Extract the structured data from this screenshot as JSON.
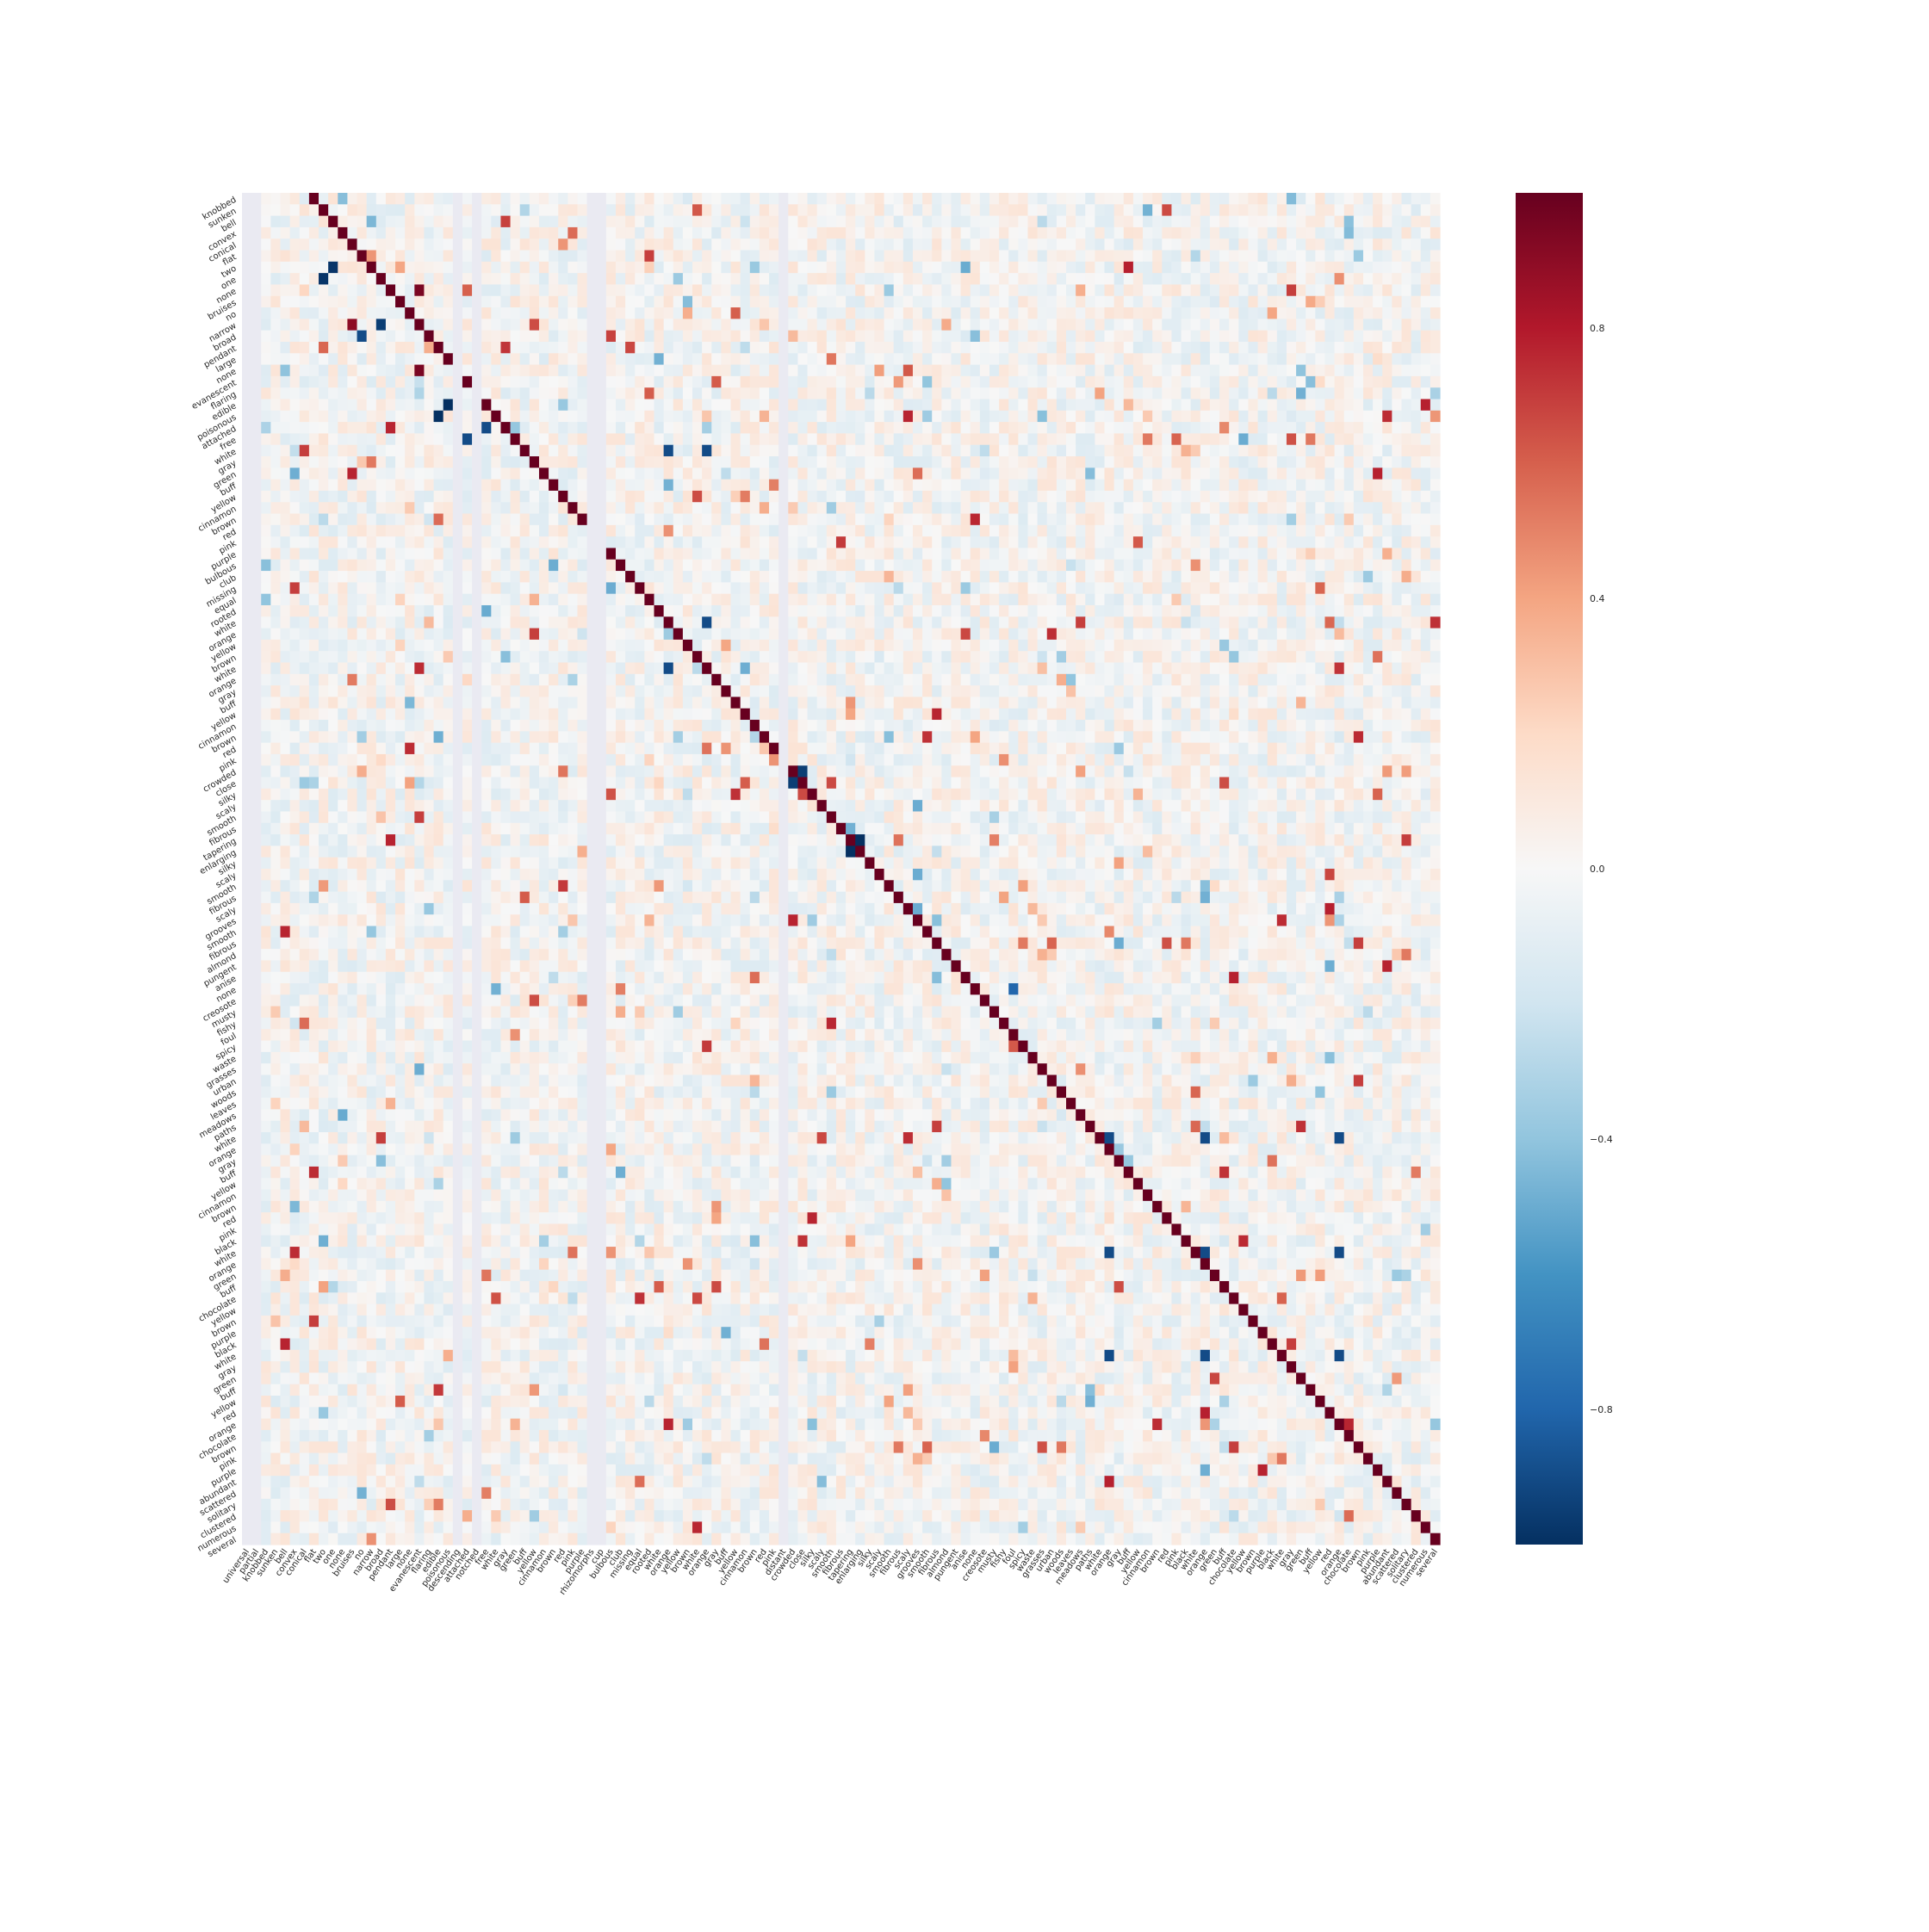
{
  "chart_data": {
    "type": "heatmap",
    "title": "",
    "xlabel": "",
    "ylabel": "",
    "row_labels": [
      "knobbed",
      "sunken",
      "bell",
      "convex",
      "conical",
      "flat",
      "two",
      "one",
      "none",
      "bruises",
      "no",
      "narrow",
      "broad",
      "pendant",
      "large",
      "none",
      "evanescent",
      "flaring",
      "edible",
      "poisonous",
      "attached",
      "free",
      "white",
      "gray",
      "green",
      "buff",
      "yellow",
      "cinnamon",
      "brown",
      "red",
      "pink",
      "purple",
      "bulbous",
      "club",
      "missing",
      "equal",
      "rooted",
      "white",
      "orange",
      "yellow",
      "brown",
      "white",
      "orange",
      "gray",
      "buff",
      "yellow",
      "cinnamon",
      "brown",
      "red",
      "pink",
      "crowded",
      "close",
      "silky",
      "scaly",
      "smooth",
      "fibrous",
      "tapering",
      "enlarging",
      "silky",
      "scaly",
      "smooth",
      "fibrous",
      "scaly",
      "grooves",
      "smooth",
      "fibrous",
      "almond",
      "pungent",
      "anise",
      "none",
      "creosote",
      "musty",
      "fishy",
      "foul",
      "spicy",
      "waste",
      "grasses",
      "urban",
      "woods",
      "leaves",
      "meadows",
      "paths",
      "white",
      "orange",
      "gray",
      "buff",
      "yellow",
      "cinnamon",
      "brown",
      "red",
      "pink",
      "black",
      "white",
      "orange",
      "green",
      "buff",
      "chocolate",
      "yellow",
      "brown",
      "purple",
      "black",
      "white",
      "gray",
      "green",
      "buff",
      "yellow",
      "red",
      "orange",
      "chocolate",
      "brown",
      "pink",
      "purple",
      "abundant",
      "scattered",
      "solitary",
      "clustered",
      "numerous",
      "several"
    ],
    "col_labels": [
      "universal",
      "partial",
      "knobbed",
      "sunken",
      "bell",
      "convex",
      "conical",
      "flat",
      "two",
      "one",
      "none",
      "bruises",
      "no",
      "narrow",
      "broad",
      "pendant",
      "large",
      "none",
      "evanescent",
      "flaring",
      "edible",
      "poisonous",
      "descending",
      "attached",
      "notched",
      "free",
      "white",
      "gray",
      "green",
      "buff",
      "yellow",
      "cinnamon",
      "brown",
      "red",
      "pink",
      "purple",
      "rhizomorphs",
      "cup",
      "bulbous",
      "club",
      "missing",
      "equal",
      "rooted",
      "white",
      "orange",
      "yellow",
      "brown",
      "white",
      "orange",
      "gray",
      "buff",
      "yellow",
      "cinnamon",
      "brown",
      "red",
      "pink",
      "distant",
      "crowded",
      "close",
      "silky",
      "scaly",
      "smooth",
      "fibrous",
      "tapering",
      "enlarging",
      "silky",
      "scaly",
      "smooth",
      "fibrous",
      "scaly",
      "grooves",
      "smooth",
      "fibrous",
      "almond",
      "pungent",
      "anise",
      "none",
      "creosote",
      "musty",
      "fishy",
      "foul",
      "spicy",
      "waste",
      "grasses",
      "urban",
      "woods",
      "leaves",
      "meadows",
      "paths",
      "white",
      "orange",
      "gray",
      "buff",
      "yellow",
      "cinnamon",
      "brown",
      "red",
      "pink",
      "black",
      "white",
      "orange",
      "green",
      "buff",
      "chocolate",
      "yellow",
      "brown",
      "purple",
      "black",
      "white",
      "gray",
      "green",
      "buff",
      "yellow",
      "red",
      "orange",
      "chocolate",
      "brown",
      "pink",
      "purple",
      "abundant",
      "scattered",
      "solitary",
      "clustered",
      "numerous",
      "several"
    ],
    "value_range": [
      -1,
      1
    ],
    "colorbar_ticks": [
      0.8,
      0.4,
      0.0,
      -0.4,
      -0.8
    ],
    "colorbar_tick_labels": [
      "0.8",
      "0.4",
      "0.0",
      "−0.4",
      "−0.8"
    ],
    "colormap": "RdBu_r",
    "colormap_stops": [
      "#053061",
      "#2166ac",
      "#4393c3",
      "#92c5de",
      "#d1e5f0",
      "#f7f7f7",
      "#fddbc7",
      "#f4a582",
      "#d6604d",
      "#b2182b",
      "#67001f"
    ],
    "undefined_column_color": "#eaeaf2",
    "undefined_columns": [
      "universal",
      "partial",
      "descending",
      "notched",
      "rhizomorphs",
      "cup",
      "distant"
    ],
    "diagonal_value": 1.0,
    "notable_values": [
      {
        "row": "two",
        "col": "one",
        "value": -0.98
      },
      {
        "row": "one",
        "col": "two",
        "value": -0.98
      },
      {
        "row": "none",
        "col": "evanescent",
        "value": 0.95
      },
      {
        "row": "narrow",
        "col": "broad",
        "value": -0.95
      },
      {
        "row": "narrow",
        "col": "bruises",
        "value": 0.9
      },
      {
        "row": "broad",
        "col": "no",
        "value": -0.9
      },
      {
        "row": "edible",
        "col": "poisonous",
        "value": -1.0
      },
      {
        "row": "poisonous",
        "col": "edible",
        "value": -1.0
      },
      {
        "row": "attached",
        "col": "free",
        "value": -0.9
      },
      {
        "row": "free",
        "col": "attached",
        "value": -0.9
      },
      {
        "row": "crowded",
        "col": "close",
        "value": -0.95
      },
      {
        "row": "close",
        "col": "crowded",
        "value": -0.95
      },
      {
        "row": "tapering",
        "col": "enlarging",
        "value": -1.0
      },
      {
        "row": "enlarging",
        "col": "tapering",
        "value": -1.0
      },
      {
        "row": "missing",
        "col": "bulbous",
        "value": -0.5
      },
      {
        "row": "white",
        "col": "orange",
        "value": -0.9
      },
      {
        "row": "none",
        "col": "foul",
        "value": -0.8
      },
      {
        "row": "foul",
        "col": "edible",
        "value": -0.6
      },
      {
        "row": "scaly",
        "col": "grooves",
        "value": -0.5
      }
    ]
  }
}
